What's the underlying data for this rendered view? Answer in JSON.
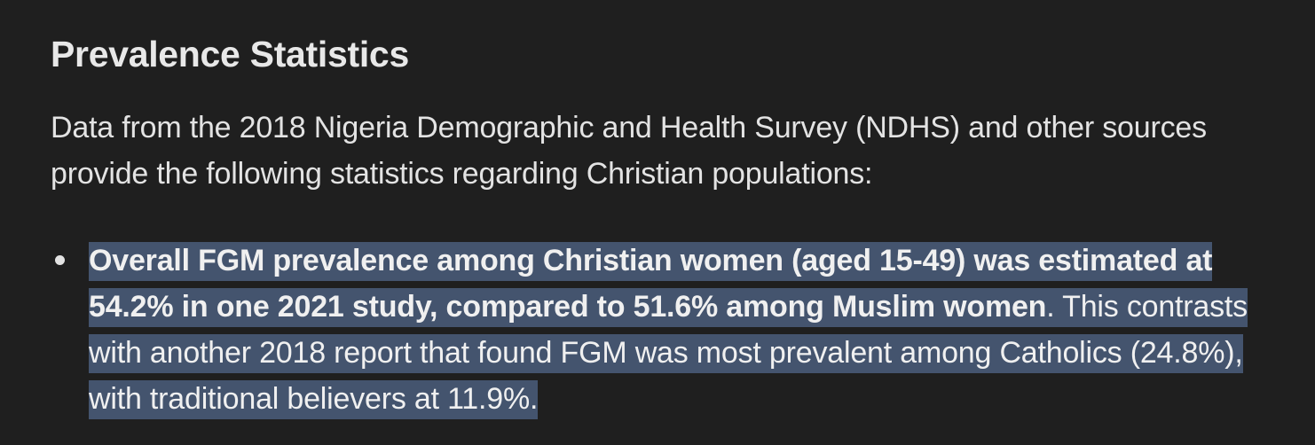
{
  "section": {
    "heading": "Prevalence Statistics",
    "intro": "Data from the 2018 Nigeria Demographic and Health Survey (NDHS) and other sources provide the following statistics regarding Christian populations:"
  },
  "stats": [
    {
      "bold": "Overall FGM prevalence among Christian women (aged 15-49) was estimated at 54.2% in one 2021 study, compared to 51.6% among Muslim women",
      "rest": ". This contrasts with another 2018 report that found FGM was most prevalent among Catholics (24.8%), with traditional believers at 11.9%."
    }
  ],
  "colors": {
    "background": "#1f1f1f",
    "text": "#e3e3e3",
    "selection": "#44546e"
  }
}
